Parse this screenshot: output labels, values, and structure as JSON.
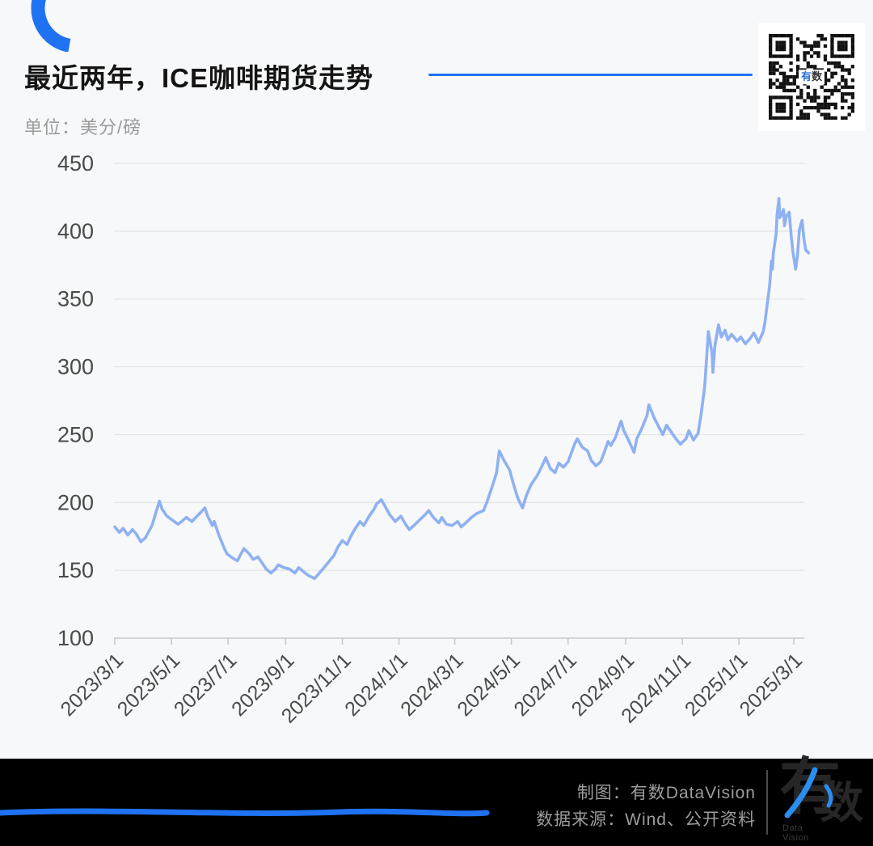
{
  "header": {
    "title": "最近两年，ICE咖啡期货走势",
    "unit_label": "单位：美分/磅"
  },
  "qr": {
    "center_label_1": "有",
    "center_label_2": "数"
  },
  "footer": {
    "credit_line": "制图：有数DataVision",
    "source_line": "数据来源：Wind、公开资料",
    "logo_char_1": "有",
    "logo_char_2": "数",
    "logo_subtext": "Data Vision"
  },
  "colors": {
    "accent_blue": "#1F72F2",
    "line_blue": "#8FB1F2",
    "grid_gray": "#e3e3e6",
    "axis_gray": "#c9c9ce",
    "axis_text": "#4a4a4a",
    "footer_text": "#9c9c9c"
  },
  "chart_data": {
    "type": "line",
    "title": "最近两年，ICE咖啡期货走势",
    "unit": "美分/磅",
    "series_name": "ICE咖啡期货价格",
    "legend": "none",
    "grid": "horizontal-only",
    "ylim": [
      100,
      450
    ],
    "yticks": [
      100,
      150,
      200,
      250,
      300,
      350,
      400,
      450
    ],
    "xticks": [
      "2023/3/1",
      "2023/5/1",
      "2023/7/1",
      "2023/9/1",
      "2023/11/1",
      "2024/1/1",
      "2024/3/1",
      "2024/5/1",
      "2024/7/1",
      "2024/9/1",
      "2024/11/1",
      "2025/1/1",
      "2025/3/1"
    ],
    "points": [
      [
        "2023/3/1",
        182
      ],
      [
        "2023/3/6",
        178
      ],
      [
        "2023/3/10",
        181
      ],
      [
        "2023/3/15",
        176
      ],
      [
        "2023/3/20",
        180
      ],
      [
        "2023/3/24",
        177
      ],
      [
        "2023/3/29",
        171
      ],
      [
        "2023/4/3",
        174
      ],
      [
        "2023/4/10",
        183
      ],
      [
        "2023/4/14",
        192
      ],
      [
        "2023/4/18",
        201
      ],
      [
        "2023/4/21",
        195
      ],
      [
        "2023/4/26",
        190
      ],
      [
        "2023/5/2",
        187
      ],
      [
        "2023/5/8",
        184
      ],
      [
        "2023/5/12",
        186
      ],
      [
        "2023/5/17",
        189
      ],
      [
        "2023/5/23",
        186
      ],
      [
        "2023/5/30",
        191
      ],
      [
        "2023/6/2",
        193
      ],
      [
        "2023/6/6",
        196
      ],
      [
        "2023/6/9",
        190
      ],
      [
        "2023/6/14",
        183
      ],
      [
        "2023/6/16",
        186
      ],
      [
        "2023/6/21",
        176
      ],
      [
        "2023/6/27",
        166
      ],
      [
        "2023/6/30",
        162
      ],
      [
        "2023/7/6",
        159
      ],
      [
        "2023/7/11",
        157
      ],
      [
        "2023/7/14",
        161
      ],
      [
        "2023/7/18",
        166
      ],
      [
        "2023/7/24",
        162
      ],
      [
        "2023/7/28",
        158
      ],
      [
        "2023/8/2",
        160
      ],
      [
        "2023/8/7",
        155
      ],
      [
        "2023/8/11",
        151
      ],
      [
        "2023/8/16",
        148
      ],
      [
        "2023/8/21",
        151
      ],
      [
        "2023/8/24",
        154
      ],
      [
        "2023/8/30",
        152
      ],
      [
        "2023/9/5",
        151
      ],
      [
        "2023/9/11",
        148
      ],
      [
        "2023/9/15",
        152
      ],
      [
        "2023/9/20",
        149
      ],
      [
        "2023/9/26",
        146
      ],
      [
        "2023/10/2",
        144
      ],
      [
        "2023/10/6",
        147
      ],
      [
        "2023/10/11",
        151
      ],
      [
        "2023/10/17",
        156
      ],
      [
        "2023/10/23",
        161
      ],
      [
        "2023/10/27",
        167
      ],
      [
        "2023/11/1",
        172
      ],
      [
        "2023/11/6",
        169
      ],
      [
        "2023/11/10",
        175
      ],
      [
        "2023/11/15",
        181
      ],
      [
        "2023/11/20",
        186
      ],
      [
        "2023/11/24",
        183
      ],
      [
        "2023/11/29",
        189
      ],
      [
        "2023/12/5",
        195
      ],
      [
        "2023/12/8",
        199
      ],
      [
        "2023/12/13",
        202
      ],
      [
        "2023/12/18",
        196
      ],
      [
        "2023/12/22",
        191
      ],
      [
        "2023/12/28",
        186
      ],
      [
        "2024/1/3",
        190
      ],
      [
        "2024/1/8",
        184
      ],
      [
        "2024/1/12",
        180
      ],
      [
        "2024/1/17",
        183
      ],
      [
        "2024/1/23",
        187
      ],
      [
        "2024/1/29",
        191
      ],
      [
        "2024/2/2",
        194
      ],
      [
        "2024/2/7",
        189
      ],
      [
        "2024/2/13",
        185
      ],
      [
        "2024/2/16",
        189
      ],
      [
        "2024/2/21",
        184
      ],
      [
        "2024/2/27",
        183
      ],
      [
        "2024/3/4",
        186
      ],
      [
        "2024/3/8",
        182
      ],
      [
        "2024/3/13",
        185
      ],
      [
        "2024/3/19",
        189
      ],
      [
        "2024/3/25",
        192
      ],
      [
        "2024/4/1",
        194
      ],
      [
        "2024/4/5",
        201
      ],
      [
        "2024/4/10",
        211
      ],
      [
        "2024/4/15",
        222
      ],
      [
        "2024/4/18",
        238
      ],
      [
        "2024/4/23",
        231
      ],
      [
        "2024/4/29",
        224
      ],
      [
        "2024/5/3",
        214
      ],
      [
        "2024/5/8",
        203
      ],
      [
        "2024/5/13",
        196
      ],
      [
        "2024/5/17",
        205
      ],
      [
        "2024/5/22",
        213
      ],
      [
        "2024/5/29",
        220
      ],
      [
        "2024/6/3",
        227
      ],
      [
        "2024/6/7",
        233
      ],
      [
        "2024/6/12",
        225
      ],
      [
        "2024/6/17",
        222
      ],
      [
        "2024/6/21",
        229
      ],
      [
        "2024/6/26",
        226
      ],
      [
        "2024/7/1",
        230
      ],
      [
        "2024/7/8",
        243
      ],
      [
        "2024/7/11",
        247
      ],
      [
        "2024/7/16",
        241
      ],
      [
        "2024/7/22",
        238
      ],
      [
        "2024/7/26",
        231
      ],
      [
        "2024/7/31",
        227
      ],
      [
        "2024/8/5",
        230
      ],
      [
        "2024/8/9",
        237
      ],
      [
        "2024/8/13",
        245
      ],
      [
        "2024/8/16",
        242
      ],
      [
        "2024/8/21",
        248
      ],
      [
        "2024/8/27",
        260
      ],
      [
        "2024/8/30",
        253
      ],
      [
        "2024/9/4",
        246
      ],
      [
        "2024/9/10",
        237
      ],
      [
        "2024/9/13",
        247
      ],
      [
        "2024/9/18",
        254
      ],
      [
        "2024/9/24",
        264
      ],
      [
        "2024/9/26",
        272
      ],
      [
        "2024/10/2",
        262
      ],
      [
        "2024/10/8",
        254
      ],
      [
        "2024/10/11",
        250
      ],
      [
        "2024/10/15",
        257
      ],
      [
        "2024/10/21",
        251
      ],
      [
        "2024/10/25",
        247
      ],
      [
        "2024/10/30",
        243
      ],
      [
        "2024/11/5",
        247
      ],
      [
        "2024/11/8",
        253
      ],
      [
        "2024/11/13",
        246
      ],
      [
        "2024/11/18",
        251
      ],
      [
        "2024/11/21",
        264
      ],
      [
        "2024/11/25",
        285
      ],
      [
        "2024/11/27",
        305
      ],
      [
        "2024/11/29",
        326
      ],
      [
        "2024/12/3",
        310
      ],
      [
        "2024/12/4",
        296
      ],
      [
        "2024/12/6",
        315
      ],
      [
        "2024/12/10",
        331
      ],
      [
        "2024/12/13",
        322
      ],
      [
        "2024/12/17",
        327
      ],
      [
        "2024/12/20",
        320
      ],
      [
        "2024/12/24",
        324
      ],
      [
        "2024/12/30",
        319
      ],
      [
        "2025/1/3",
        322
      ],
      [
        "2025/1/8",
        317
      ],
      [
        "2025/1/13",
        321
      ],
      [
        "2025/1/17",
        325
      ],
      [
        "2025/1/22",
        318
      ],
      [
        "2025/1/27",
        326
      ],
      [
        "2025/1/29",
        333
      ],
      [
        "2025/1/31",
        344
      ],
      [
        "2025/2/3",
        360
      ],
      [
        "2025/2/5",
        378
      ],
      [
        "2025/2/6",
        372
      ],
      [
        "2025/2/7",
        384
      ],
      [
        "2025/2/10",
        398
      ],
      [
        "2025/2/11",
        412
      ],
      [
        "2025/2/13",
        424
      ],
      [
        "2025/2/14",
        410
      ],
      [
        "2025/2/18",
        416
      ],
      [
        "2025/2/19",
        404
      ],
      [
        "2025/2/21",
        411
      ],
      [
        "2025/2/24",
        414
      ],
      [
        "2025/2/26",
        398
      ],
      [
        "2025/2/28",
        385
      ],
      [
        "2025/3/3",
        372
      ],
      [
        "2025/3/5",
        382
      ],
      [
        "2025/3/7",
        401
      ],
      [
        "2025/3/10",
        408
      ],
      [
        "2025/3/12",
        394
      ],
      [
        "2025/3/14",
        386
      ],
      [
        "2025/3/17",
        384
      ]
    ]
  }
}
